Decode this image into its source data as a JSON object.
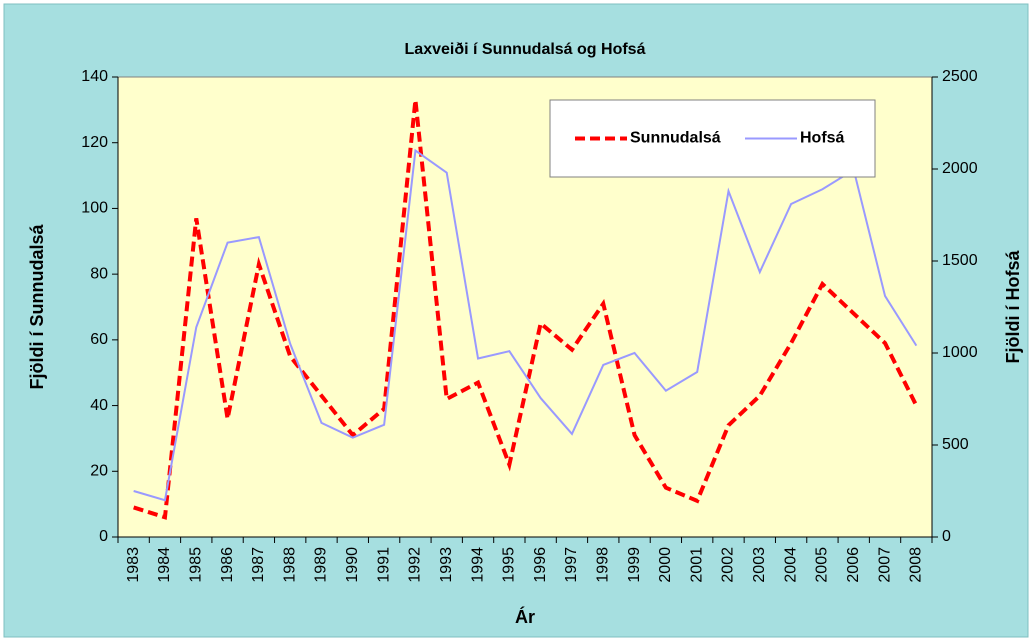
{
  "chart_data": {
    "type": "line",
    "title": "Laxveiði í Sunnudalsá og Hofsá",
    "xlabel": "Ár",
    "ylabel": "Fjöldi í Sunnudalsá",
    "y2label": "Fjöldi í Hofsá",
    "categories": [
      "1983",
      "1984",
      "1985",
      "1986",
      "1987",
      "1988",
      "1989",
      "1990",
      "1991",
      "1992",
      "1993",
      "1994",
      "1995",
      "1996",
      "1997",
      "1998",
      "1999",
      "2000",
      "2001",
      "2002",
      "2003",
      "2004",
      "2005",
      "2006",
      "2007",
      "2008"
    ],
    "series": [
      {
        "name": "Sunnudalsá",
        "color": "#ff0000",
        "dash": true,
        "values": [
          9,
          6,
          97,
          36,
          83,
          55,
          43,
          31,
          39,
          133,
          42,
          47,
          22,
          65,
          57,
          71,
          31,
          15,
          11,
          34,
          43,
          59,
          77,
          68,
          59,
          40
        ]
      },
      {
        "name": "Hofsá",
        "color": "#9999ff",
        "axis": "y2",
        "values": [
          250,
          200,
          1140,
          1600,
          1630,
          1050,
          620,
          540,
          610,
          2100,
          1980,
          970,
          1010,
          755,
          560,
          935,
          1000,
          795,
          897,
          1880,
          1440,
          1810,
          1890,
          1995,
          1310,
          1040
        ]
      }
    ],
    "ylim": [
      0,
      140
    ],
    "yticks": [
      0,
      20,
      40,
      60,
      80,
      100,
      120,
      140
    ],
    "y2lim": [
      0,
      2500
    ],
    "y2ticks": [
      0,
      500,
      1000,
      1500,
      2000,
      2500
    ],
    "legend": "upper right"
  }
}
